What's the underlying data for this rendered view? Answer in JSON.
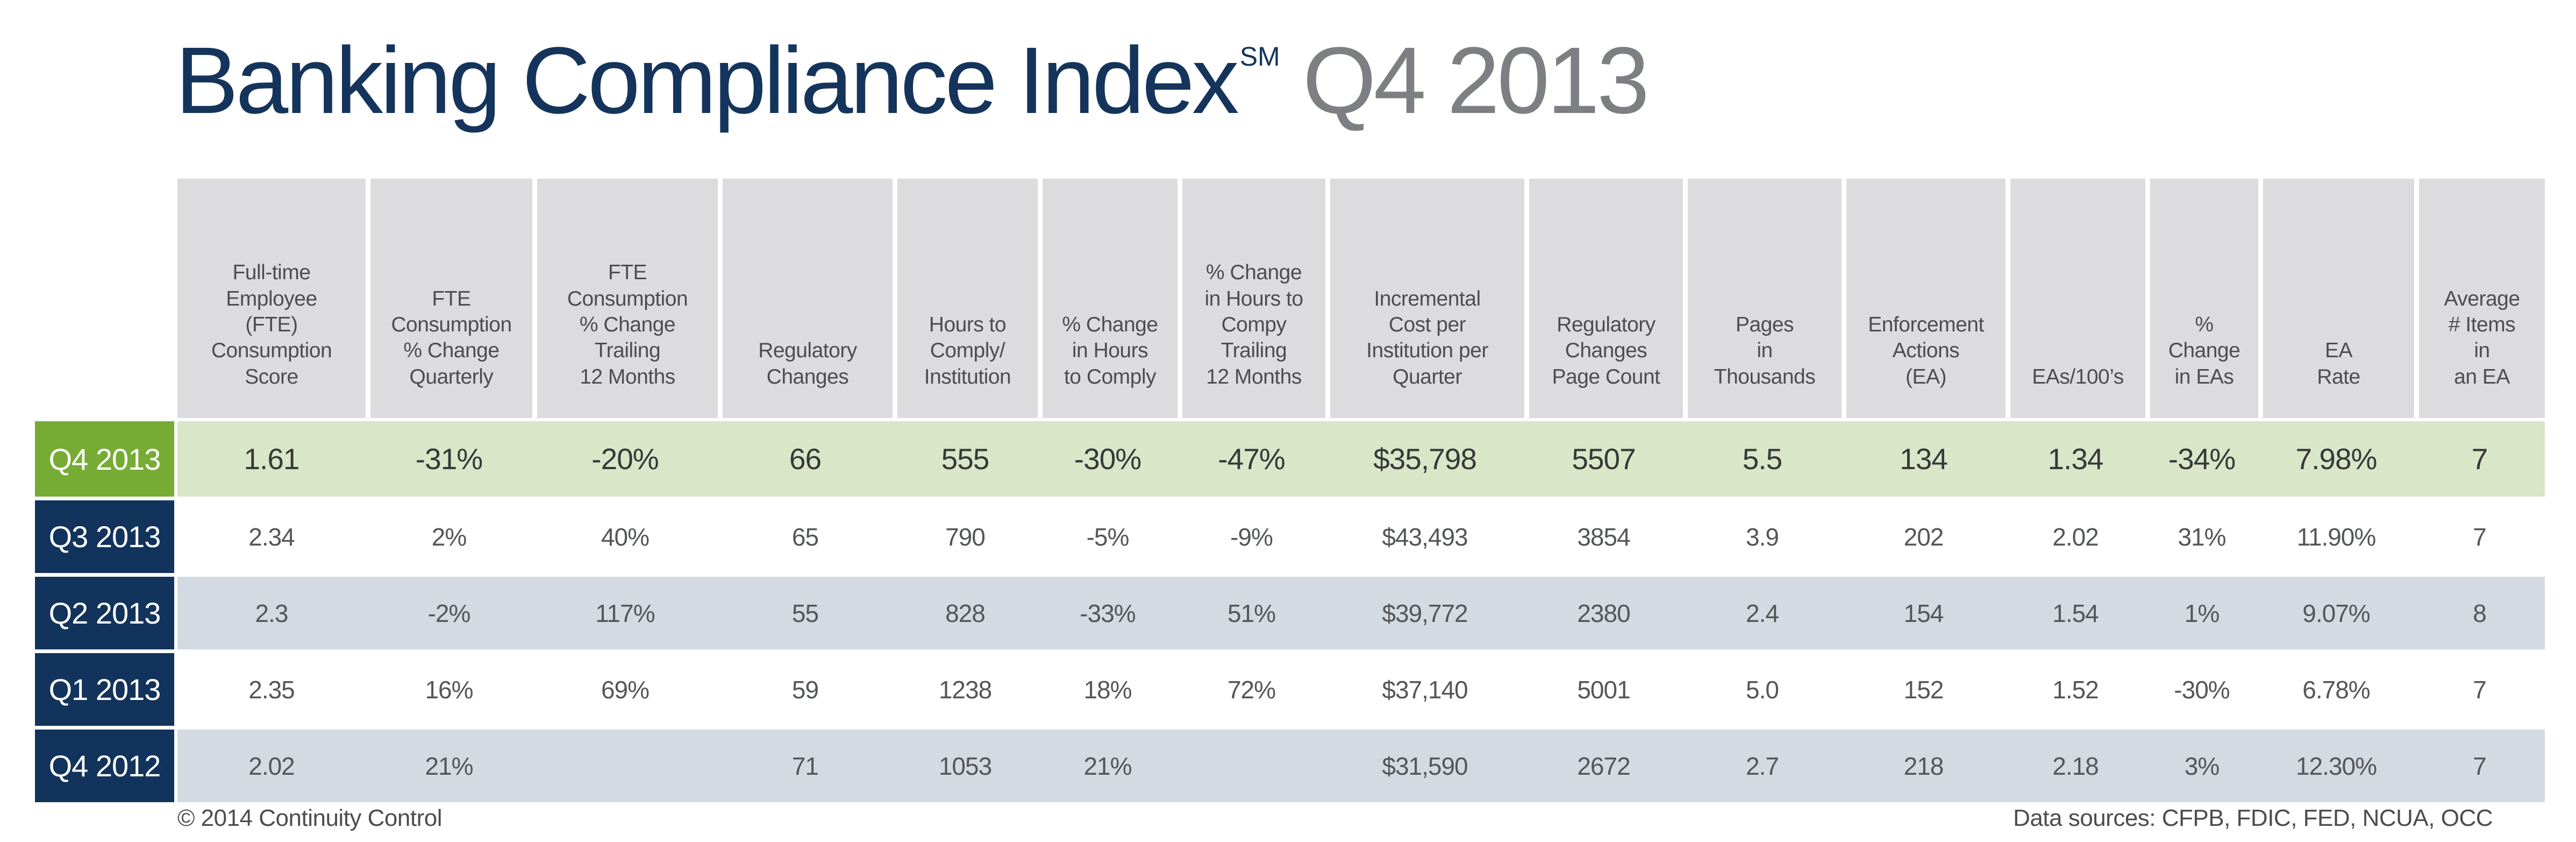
{
  "title": {
    "main": "Banking Compliance Index",
    "trademark": "SM",
    "period": "Q4 2013"
  },
  "colors": {
    "brand_navy": "#12335b",
    "title_navy": "#15345c",
    "title_gray": "#7d7f82",
    "current_quarter_green": "#76ac34",
    "current_quarter_row_bg": "#d9e6c7",
    "alt_row_bg": "#d3dae2",
    "header_bg": "#dcdcde",
    "header_text": "#4c4d4f",
    "data_text": "#545659"
  },
  "table": {
    "columns": [
      "Full-time\nEmployee\n(FTE)\nConsumption\nScore",
      "FTE\nConsumption\n% Change\nQuarterly",
      "FTE\nConsumption\n% Change\nTrailing\n12 Months",
      "Regulatory\nChanges",
      "Hours to\nComply/\nInstitution",
      "% Change\nin Hours\nto Comply",
      "% Change\nin Hours to\nCompy\nTrailing\n12 Months",
      "Incremental\nCost per\nInstitution per\nQuarter",
      "Regulatory\nChanges\nPage Count",
      "Pages\nin\nThousands",
      "Enforcement\nActions\n(EA)",
      "EAs/100’s",
      "%\nChange\nin EAs",
      "EA\nRate",
      "Average\n# Items\nin\nan EA"
    ],
    "rows": [
      {
        "label": "Q4 2013",
        "highlight": "current-quarter",
        "cells": [
          "1.61",
          "-31%",
          "-20%",
          "66",
          "555",
          "-30%",
          "-47%",
          "$35,798",
          "5507",
          "5.5",
          "134",
          "1.34",
          "-34%",
          "7.98%",
          "7"
        ]
      },
      {
        "label": "Q3 2013",
        "highlight": "none",
        "cells": [
          "2.34",
          "2%",
          "40%",
          "65",
          "790",
          "-5%",
          "-9%",
          "$43,493",
          "3854",
          "3.9",
          "202",
          "2.02",
          "31%",
          "11.90%",
          "7"
        ]
      },
      {
        "label": "Q2 2013",
        "highlight": "none",
        "cells": [
          "2.3",
          "-2%",
          "117%",
          "55",
          "828",
          "-33%",
          "51%",
          "$39,772",
          "2380",
          "2.4",
          "154",
          "1.54",
          "1%",
          "9.07%",
          "8"
        ]
      },
      {
        "label": "Q1 2013",
        "highlight": "none",
        "cells": [
          "2.35",
          "16%",
          "69%",
          "59",
          "1238",
          "18%",
          "72%",
          "$37,140",
          "5001",
          "5.0",
          "152",
          "1.52",
          "-30%",
          "6.78%",
          "7"
        ]
      },
      {
        "label": "Q4 2012",
        "highlight": "none",
        "cells": [
          "2.02",
          "21%",
          "",
          "71",
          "1053",
          "21%",
          "",
          "$31,590",
          "2672",
          "2.7",
          "218",
          "2.18",
          "3%",
          "12.30%",
          "7"
        ]
      }
    ]
  },
  "chart_data": {
    "type": "table",
    "title": "Banking Compliance Index Q4 2013",
    "categories": [
      "Q4 2013",
      "Q3 2013",
      "Q2 2013",
      "Q1 2013",
      "Q4 2012"
    ],
    "series": [
      {
        "name": "Full-time Employee (FTE) Consumption Score",
        "values": [
          1.61,
          2.34,
          2.3,
          2.35,
          2.02
        ]
      },
      {
        "name": "FTE Consumption % Change Quarterly (%)",
        "values": [
          -31,
          2,
          -2,
          16,
          21
        ]
      },
      {
        "name": "FTE Consumption % Change Trailing 12 Months (%)",
        "values": [
          -20,
          40,
          117,
          69,
          null
        ]
      },
      {
        "name": "Regulatory Changes",
        "values": [
          66,
          65,
          55,
          59,
          71
        ]
      },
      {
        "name": "Hours to Comply/Institution",
        "values": [
          555,
          790,
          828,
          1238,
          1053
        ]
      },
      {
        "name": "% Change in Hours to Comply (%)",
        "values": [
          -30,
          -5,
          -33,
          18,
          21
        ]
      },
      {
        "name": "% Change in Hours to Compy Trailing 12 Months (%)",
        "values": [
          -47,
          -9,
          51,
          72,
          null
        ]
      },
      {
        "name": "Incremental Cost per Institution per Quarter ($)",
        "values": [
          35798,
          43493,
          39772,
          37140,
          31590
        ]
      },
      {
        "name": "Regulatory Changes Page Count",
        "values": [
          5507,
          3854,
          2380,
          5001,
          2672
        ]
      },
      {
        "name": "Pages in Thousands",
        "values": [
          5.5,
          3.9,
          2.4,
          5.0,
          2.7
        ]
      },
      {
        "name": "Enforcement Actions (EA)",
        "values": [
          134,
          202,
          154,
          152,
          218
        ]
      },
      {
        "name": "EAs/100's",
        "values": [
          1.34,
          2.02,
          1.54,
          1.52,
          2.18
        ]
      },
      {
        "name": "% Change in EAs (%)",
        "values": [
          -34,
          31,
          1,
          -30,
          3
        ]
      },
      {
        "name": "EA Rate (%)",
        "values": [
          7.98,
          11.9,
          9.07,
          6.78,
          12.3
        ]
      },
      {
        "name": "Average # Items in an EA",
        "values": [
          7,
          7,
          8,
          7,
          7
        ]
      }
    ],
    "legend_position": "none",
    "grid": false
  },
  "footer": {
    "copyright": "© 2014 Continuity Control",
    "sources": "Data sources: CFPB, FDIC, FED, NCUA, OCC"
  }
}
